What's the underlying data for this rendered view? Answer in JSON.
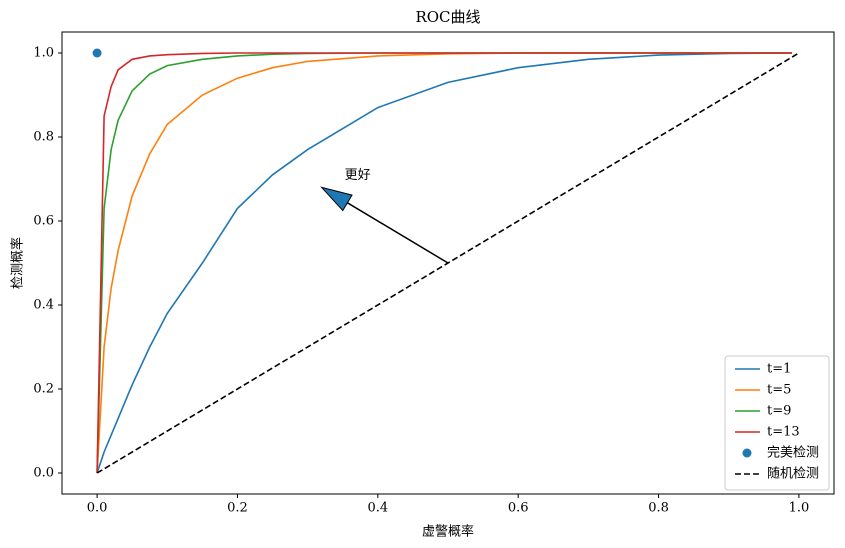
{
  "chart_data": {
    "type": "line",
    "title": "ROC曲线",
    "x_label": "虚警概率",
    "y_label": "检测概率",
    "xlim": [
      -0.05,
      1.05
    ],
    "ylim": [
      -0.05,
      1.05
    ],
    "xticks": [
      {
        "value": 0,
        "label": "0.0"
      },
      {
        "value": 0.2,
        "label": "0.2"
      },
      {
        "value": 0.4,
        "label": "0.4"
      },
      {
        "value": 0.6,
        "label": "0.6"
      },
      {
        "value": 0.8,
        "label": "0.8"
      },
      {
        "value": 1,
        "label": "1.0"
      }
    ],
    "yticks": [
      {
        "value": 0,
        "label": "0.0"
      },
      {
        "value": 0.2,
        "label": "0.2"
      },
      {
        "value": 0.4,
        "label": "0.4"
      },
      {
        "value": 0.6,
        "label": "0.6"
      },
      {
        "value": 0.8,
        "label": "0.8"
      },
      {
        "value": 1,
        "label": "1.0"
      }
    ],
    "grid": false,
    "legend": "lower right",
    "series": [
      {
        "name": "t=1",
        "color": "#1f77b4",
        "style": "line",
        "x": [
          0,
          0.01,
          0.02,
          0.03,
          0.05,
          0.075,
          0.1,
          0.15,
          0.2,
          0.25,
          0.3,
          0.4,
          0.5,
          0.6,
          0.7,
          0.8,
          0.9,
          0.99
        ],
        "values": [
          0,
          0.05,
          0.09,
          0.13,
          0.21,
          0.3,
          0.38,
          0.5,
          0.63,
          0.71,
          0.77,
          0.87,
          0.93,
          0.965,
          0.985,
          0.995,
          0.999,
          1
        ]
      },
      {
        "name": "t=5",
        "color": "#ff7f0e",
        "style": "line",
        "x": [
          0,
          0.01,
          0.02,
          0.03,
          0.05,
          0.075,
          0.1,
          0.15,
          0.2,
          0.25,
          0.3,
          0.4,
          0.5,
          0.6,
          0.7,
          0.8,
          0.9,
          0.99
        ],
        "values": [
          0,
          0.3,
          0.44,
          0.53,
          0.66,
          0.76,
          0.83,
          0.9,
          0.94,
          0.965,
          0.98,
          0.993,
          0.998,
          1,
          1,
          1,
          1,
          1
        ]
      },
      {
        "name": "t=9",
        "color": "#2ca02c",
        "style": "line",
        "x": [
          0,
          0.01,
          0.02,
          0.03,
          0.05,
          0.075,
          0.1,
          0.15,
          0.2,
          0.25,
          0.3,
          0.4,
          0.5,
          0.6,
          0.7,
          0.8,
          0.9,
          0.99
        ],
        "values": [
          0,
          0.63,
          0.77,
          0.84,
          0.91,
          0.95,
          0.97,
          0.985,
          0.993,
          0.997,
          0.999,
          1,
          1,
          1,
          1,
          1,
          1,
          1
        ]
      },
      {
        "name": "t=13",
        "color": "#d62728",
        "style": "line",
        "x": [
          0,
          0.01,
          0.02,
          0.03,
          0.05,
          0.075,
          0.1,
          0.15,
          0.2,
          0.25,
          0.3,
          0.4,
          0.5,
          0.6,
          0.7,
          0.8,
          0.9,
          0.99
        ],
        "values": [
          0,
          0.85,
          0.92,
          0.96,
          0.985,
          0.993,
          0.996,
          0.999,
          1,
          1,
          1,
          1,
          1,
          1,
          1,
          1,
          1,
          1
        ]
      },
      {
        "name": "完美检测",
        "color": "#1f77b4",
        "style": "scatter",
        "x": [
          0
        ],
        "values": [
          1
        ]
      },
      {
        "name": "随机检测",
        "color": "#000000",
        "style": "dashed",
        "x": [
          0,
          1
        ],
        "values": [
          0,
          1
        ]
      }
    ],
    "annotation": {
      "text": "更好",
      "xy": [
        0.32,
        0.68
      ],
      "xytext": [
        0.5,
        0.5
      ],
      "color": "#1f77b4"
    }
  }
}
